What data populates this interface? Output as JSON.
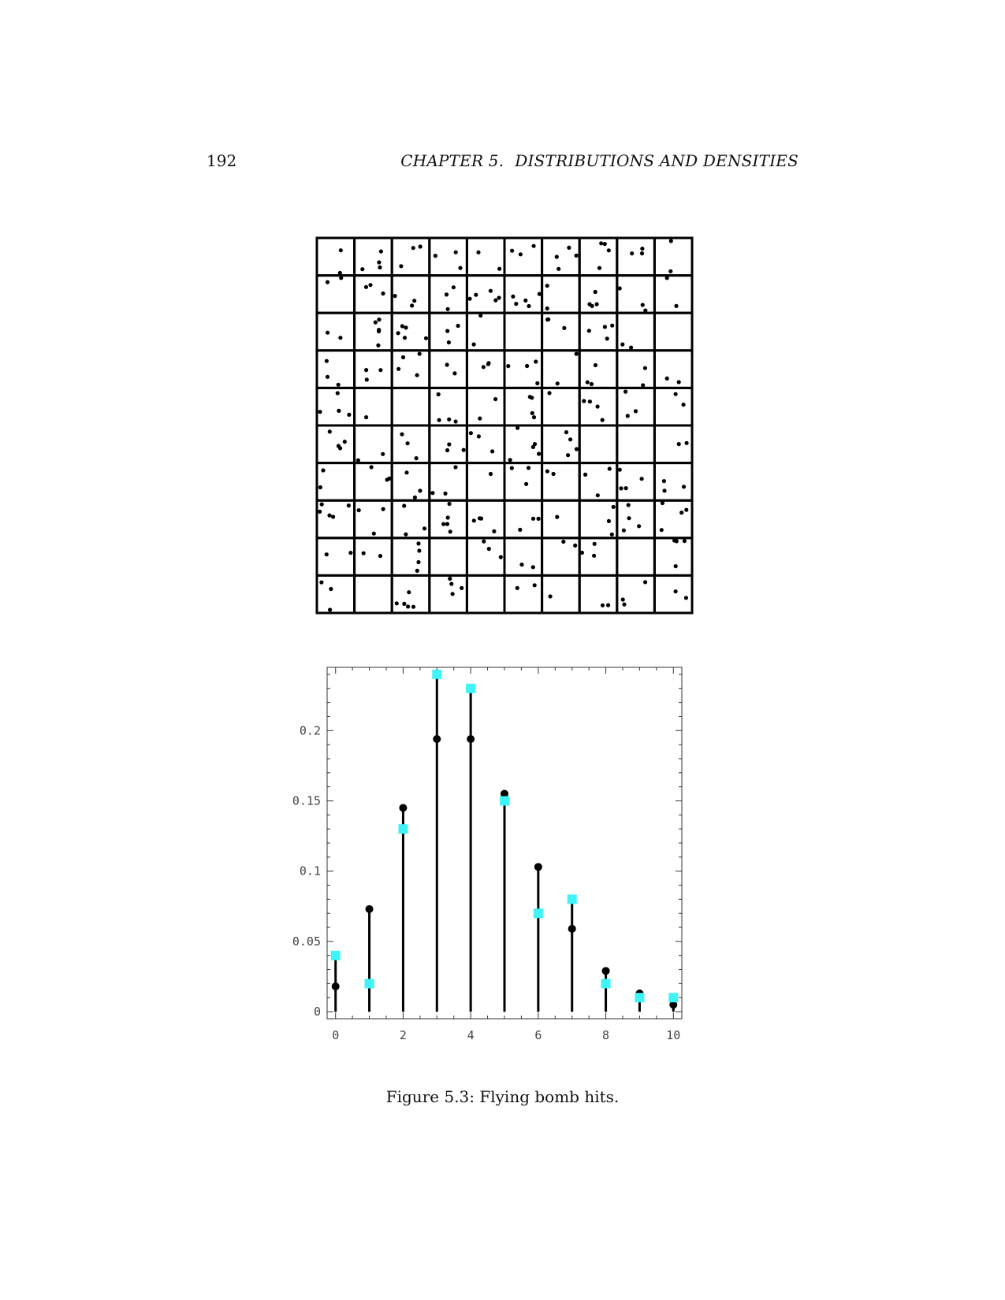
{
  "header": {
    "page_number": "192",
    "chapter": "CHAPTER 5.",
    "title": "DISTRIBUTIONS AND DENSITIES"
  },
  "grid_figure": {
    "rows": 10,
    "cols": 10,
    "hits_per_cell": [
      [
        2,
        4,
        3,
        3,
        2,
        3,
        4,
        4,
        3,
        2
      ],
      [
        2,
        3,
        3,
        3,
        5,
        5,
        2,
        4,
        3,
        2
      ],
      [
        2,
        5,
        5,
        3,
        2,
        0,
        3,
        4,
        2,
        0
      ],
      [
        3,
        3,
        4,
        2,
        3,
        4,
        2,
        3,
        2,
        2
      ],
      [
        4,
        1,
        0,
        4,
        2,
        4,
        1,
        4,
        3,
        2
      ],
      [
        4,
        2,
        3,
        3,
        3,
        5,
        4,
        0,
        0,
        2
      ],
      [
        2,
        3,
        3,
        3,
        1,
        3,
        2,
        3,
        4,
        3
      ],
      [
        5,
        3,
        3,
        5,
        4,
        3,
        1,
        3,
        4,
        4
      ],
      [
        2,
        2,
        4,
        0,
        3,
        2,
        2,
        3,
        0,
        4
      ],
      [
        3,
        0,
        5,
        4,
        0,
        2,
        1,
        2,
        3,
        2
      ]
    ]
  },
  "chart_data": {
    "type": "scatter",
    "title": "",
    "xlabel": "",
    "ylabel": "",
    "xlim": [
      -0.25,
      10.25
    ],
    "ylim": [
      -0.005,
      0.245
    ],
    "x_ticks": [
      "0",
      "2",
      "4",
      "6",
      "8",
      "10"
    ],
    "y_ticks": [
      "0",
      "0.05",
      "0.1",
      "0.15",
      "0.2"
    ],
    "series": [
      {
        "marker": "circle",
        "color": "#000000",
        "x": [
          0,
          1,
          2,
          3,
          4,
          5,
          6,
          7,
          8,
          9,
          10
        ],
        "values": [
          0.018,
          0.073,
          0.145,
          0.194,
          0.194,
          0.155,
          0.103,
          0.059,
          0.029,
          0.013,
          0.005
        ]
      },
      {
        "marker": "square",
        "color": "#3ff3f6",
        "x": [
          0,
          1,
          2,
          3,
          4,
          5,
          6,
          7,
          8,
          9,
          10
        ],
        "values": [
          0.04,
          0.02,
          0.13,
          0.24,
          0.23,
          0.15,
          0.07,
          0.08,
          0.02,
          0.01,
          0.01
        ]
      }
    ]
  },
  "caption": "Figure 5.3: Flying bomb hits."
}
